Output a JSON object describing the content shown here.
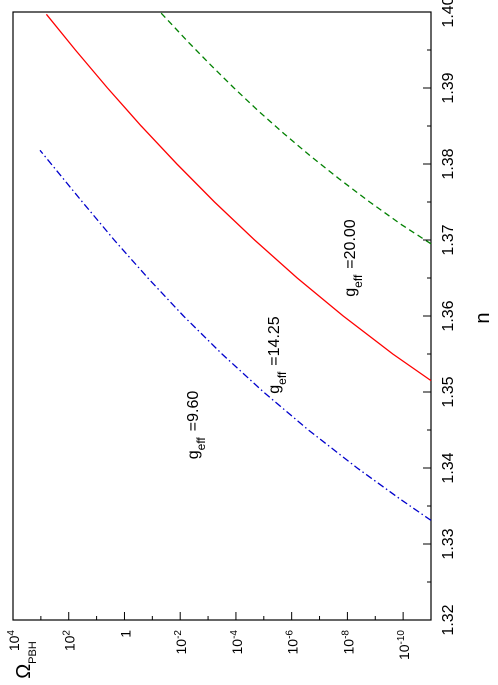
{
  "chart_data": {
    "type": "line",
    "orientation": "rotated 90° counter-clockwise (n axis on right, Ω axis on bottom)",
    "xlabel": "n",
    "ylabel": "Ω",
    "ylabel_sub": "PBH",
    "xlim": [
      1.32,
      1.4
    ],
    "ylim_log10": [
      -11,
      4
    ],
    "y_scale": "log",
    "grid": false,
    "x_ticks": [
      "1.32",
      "1.33",
      "1.34",
      "1.35",
      "1.36",
      "1.37",
      "1.38",
      "1.39",
      "1.40"
    ],
    "y_ticks": [
      {
        "base": "10",
        "exp": "4"
      },
      {
        "base": "10",
        "exp": "2"
      },
      {
        "base": "1",
        "exp": ""
      },
      {
        "base": "10",
        "exp": "-2"
      },
      {
        "base": "10",
        "exp": "-4"
      },
      {
        "base": "10",
        "exp": "-6"
      },
      {
        "base": "10",
        "exp": "-8"
      },
      {
        "base": "10",
        "exp": "-10"
      }
    ],
    "series": [
      {
        "label_main": "g",
        "label_sub": "eff",
        "label_value": "=9.60",
        "color": "#0000cc",
        "style": "dash-dot",
        "x": [
          1.3331,
          1.336,
          1.34,
          1.345,
          1.35,
          1.355,
          1.36,
          1.365,
          1.37,
          1.375,
          1.3818
        ],
        "log10_y": [
          -11,
          -9.86,
          -8.35,
          -6.6,
          -4.99,
          -3.5,
          -2.12,
          -0.84,
          0.37,
          1.51,
          3.03
        ]
      },
      {
        "label_main": "g",
        "label_sub": "eff",
        "label_value": "=14.25",
        "color": "#ff0000",
        "style": "solid",
        "x": [
          1.3515,
          1.355,
          1.36,
          1.365,
          1.37,
          1.375,
          1.38,
          1.385,
          1.39,
          1.395,
          1.3997
        ],
        "log10_y": [
          -11,
          -9.63,
          -7.85,
          -6.2,
          -4.67,
          -3.23,
          -1.88,
          -0.6,
          0.61,
          1.76,
          2.8
        ]
      },
      {
        "label_main": "g",
        "label_sub": "eff",
        "label_value": "=20.00",
        "color": "#008000",
        "style": "dashed",
        "x": [
          1.3695,
          1.372,
          1.375,
          1.378,
          1.381,
          1.384,
          1.387,
          1.39,
          1.393,
          1.396,
          1.4
        ],
        "log10_y": [
          -11,
          -9.95,
          -8.8,
          -7.72,
          -6.69,
          -5.72,
          -4.8,
          -3.93,
          -3.1,
          -2.3,
          -1.28
        ]
      }
    ]
  }
}
